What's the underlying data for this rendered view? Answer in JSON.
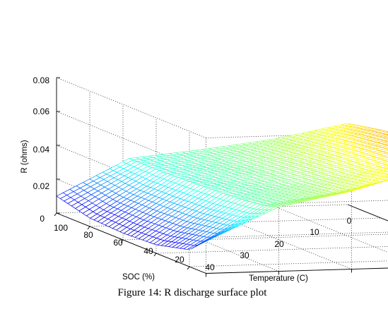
{
  "chart_data": {
    "type": "surface",
    "title": "",
    "xlabel": "Temperature (C)",
    "ylabel": "SOC (%)",
    "zlabel": "R (ohms)",
    "x_ticks": [
      "0",
      "10",
      "20",
      "30",
      "40"
    ],
    "y_ticks": [
      "100",
      "80",
      "60",
      "40",
      "20"
    ],
    "z_ticks": [
      "0",
      "0.02",
      "0.04",
      "0.06",
      "0.08"
    ],
    "xlim": [
      0,
      40
    ],
    "ylim": [
      10,
      100
    ],
    "zlim": [
      0,
      0.08
    ],
    "colormap": "jet",
    "grid": true,
    "surface_samples": {
      "temperature_C": [
        0,
        10,
        20,
        30,
        40
      ],
      "soc_percent": [
        100,
        80,
        60,
        40,
        20,
        10
      ],
      "r_ohms": [
        [
          0.048,
          0.052,
          0.055,
          0.056,
          0.062,
          0.075
        ],
        [
          0.04,
          0.043,
          0.045,
          0.046,
          0.05,
          0.058
        ],
        [
          0.035,
          0.036,
          0.037,
          0.038,
          0.041,
          0.046
        ],
        [
          0.031,
          0.031,
          0.032,
          0.033,
          0.035,
          0.038
        ],
        [
          0.01,
          0.005,
          0.004,
          0.005,
          0.01,
          0.019
        ]
      ]
    }
  },
  "caption": "Figure 14: R discharge surface plot"
}
